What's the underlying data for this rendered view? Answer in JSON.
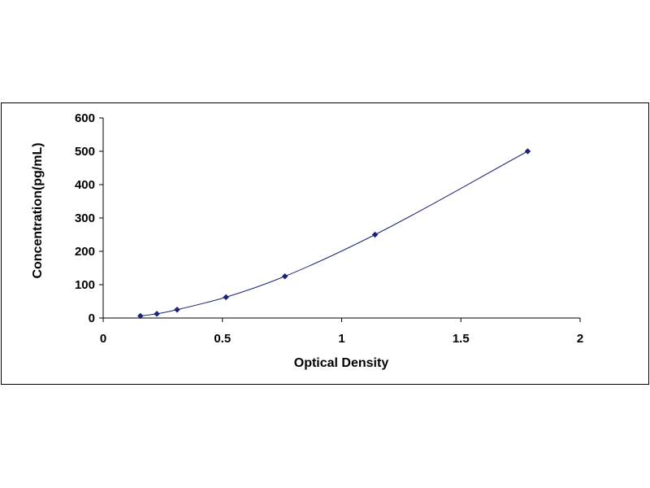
{
  "chart_data": {
    "type": "scatter",
    "title": "",
    "xlabel": "Optical Density",
    "ylabel": "Concentration(pg/mL)",
    "xlim": [
      0,
      2
    ],
    "ylim": [
      0,
      600
    ],
    "x_ticks": [
      0,
      0.5,
      1,
      1.5,
      2
    ],
    "x_tick_labels": [
      "0",
      "0.5",
      "1",
      "1.5",
      "2"
    ],
    "y_ticks": [
      0,
      100,
      200,
      300,
      400,
      500,
      600
    ],
    "y_tick_labels": [
      "0",
      "100",
      "200",
      "300",
      "400",
      "500",
      "600"
    ],
    "grid": false,
    "legend": "none",
    "series": [
      {
        "x": [
          0.156,
          0.225,
          0.31,
          0.515,
          0.762,
          1.14,
          1.78
        ],
        "y": [
          6.25,
          12.5,
          25,
          62.5,
          125,
          250,
          500
        ],
        "marker": "diamond",
        "color": "#1a2472",
        "fit_curve": true,
        "curve_color": "#1a2472"
      }
    ]
  }
}
